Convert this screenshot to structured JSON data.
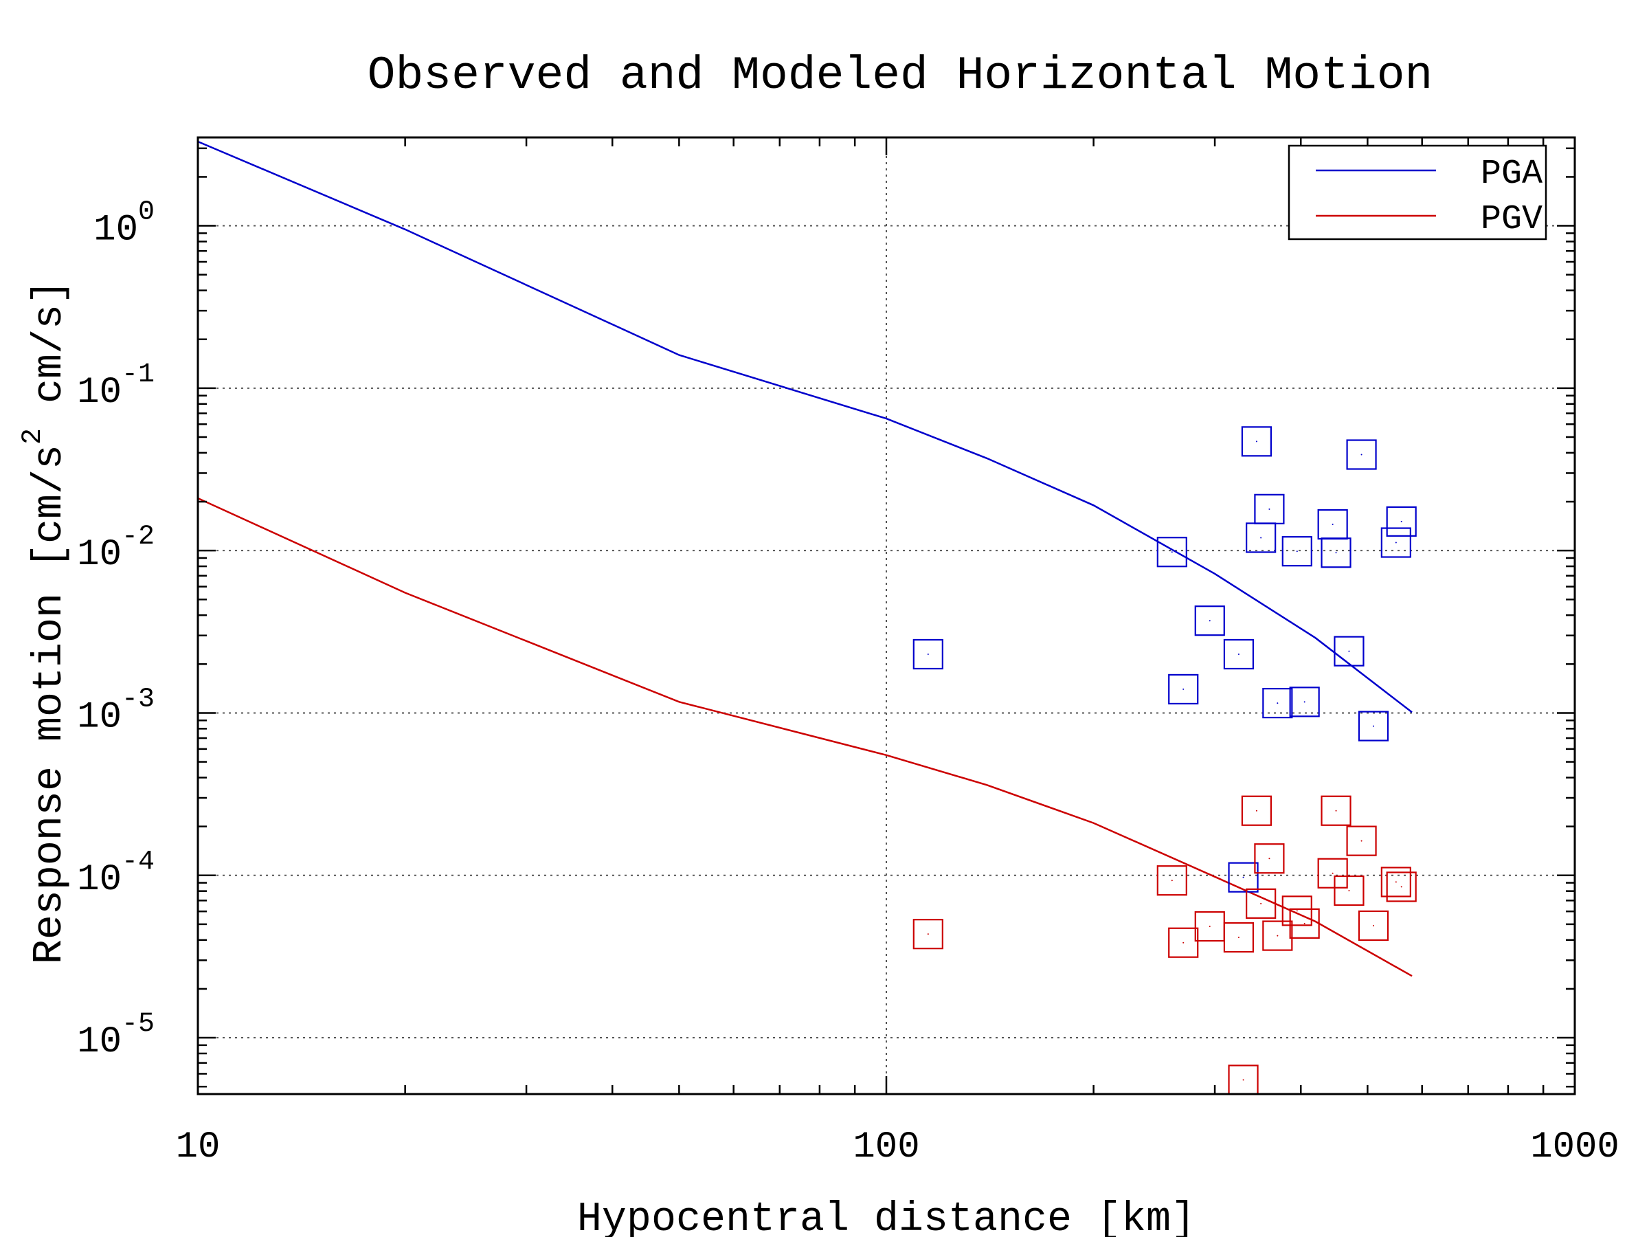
{
  "chart_data": {
    "type": "scatter",
    "title": "Observed and Modeled Horizontal Motion",
    "xlabel": "Hypocentral distance [km]",
    "ylabel": {
      "base": "Response motion  [cm/s",
      "sup": "2",
      "tail": "  cm/s]"
    },
    "x_scale": "log",
    "y_scale": "log",
    "xlim": [
      10,
      1000
    ],
    "ylim": [
      4.5e-06,
      3.5
    ],
    "x_ticks": [
      {
        "value": 10,
        "label": "10"
      },
      {
        "value": 100,
        "label": "100"
      },
      {
        "value": 1000,
        "label": "1000"
      }
    ],
    "y_ticks": [
      {
        "value": 1,
        "base": "10",
        "exp": "0"
      },
      {
        "value": 0.1,
        "base": "10",
        "exp": "-1"
      },
      {
        "value": 0.01,
        "base": "10",
        "exp": "-2"
      },
      {
        "value": 0.001,
        "base": "10",
        "exp": "-3"
      },
      {
        "value": 0.0001,
        "base": "10",
        "exp": "-4"
      },
      {
        "value": 1e-05,
        "base": "10",
        "exp": "-5"
      }
    ],
    "grid": true,
    "legend": {
      "placement": "top-right",
      "entries": [
        "PGA",
        "PGV"
      ]
    },
    "series": [
      {
        "name": "PGA",
        "kind": "line",
        "color": "#0000cc",
        "x": [
          10,
          20,
          50,
          100,
          140,
          200,
          300,
          420,
          580
        ],
        "y": [
          3.3,
          0.95,
          0.16,
          0.065,
          0.037,
          0.019,
          0.0072,
          0.0029,
          0.00101
        ]
      },
      {
        "name": "PGV",
        "kind": "line",
        "color": "#cc0000",
        "x": [
          10,
          20,
          50,
          100,
          140,
          200,
          300,
          420,
          580
        ],
        "y": [
          0.021,
          0.0055,
          0.00117,
          0.00055,
          0.00036,
          0.00021,
          9.8e-05,
          5.2e-05,
          2.4e-05
        ]
      },
      {
        "name": "PGA observed",
        "kind": "markers",
        "color": "#0000cc",
        "x": [
          115,
          260,
          270,
          295,
          325,
          345,
          350,
          360,
          370,
          395,
          405,
          445,
          450,
          470,
          490,
          510,
          550,
          560,
          330
        ],
        "y": [
          0.0023,
          0.0098,
          0.0014,
          0.0037,
          0.0023,
          0.047,
          0.012,
          0.018,
          0.00115,
          0.0099,
          0.00117,
          0.0145,
          0.0097,
          0.0024,
          0.039,
          0.00083,
          0.0112,
          0.0151,
          9.72e-05
        ]
      },
      {
        "name": "PGV observed",
        "kind": "markers",
        "color": "#cc0000",
        "x": [
          115,
          260,
          270,
          295,
          325,
          330,
          345,
          350,
          360,
          370,
          395,
          405,
          445,
          450,
          470,
          490,
          510,
          550,
          560
        ],
        "y": [
          4.35e-05,
          9.3e-05,
          3.85e-05,
          4.85e-05,
          4.15e-05,
          5.5e-06,
          0.00025,
          6.7e-05,
          0.000127,
          4.25e-05,
          6.05e-05,
          5.05e-05,
          0.000103,
          0.00025,
          8.05e-05,
          0.000163,
          4.9e-05,
          9.1e-05,
          8.5e-05
        ]
      }
    ]
  }
}
